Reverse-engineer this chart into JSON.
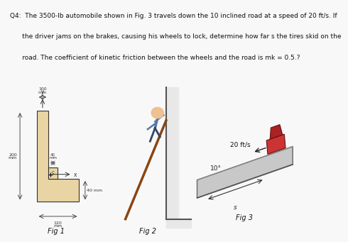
{
  "bg_color": "#f8f8f8",
  "text_color": "#111111",
  "q_text_line1": "Q4:  The 3500-lb automobile shown in Fig. 3 travels down the 10 inclined road at a speed of 20 ft/s. If",
  "q_text_line2": "      the driver jams on the brakes, causing his wheels to lock, determine how far s the tires skid on the",
  "q_text_line3": "      road. The coefficient of kinetic friction between the wheels and the road is mk = 0.5.?",
  "fig1_label": "Fig 1",
  "fig2_label": "Fig 2",
  "fig3_label": "Fig 3",
  "label_fontsize": 7,
  "q_fontsize": 6.5,
  "dim_fontsize": 4.5,
  "fig1_color": "#e8d5a3",
  "fig1_edge": "#333333",
  "road_color": "#b8b8b8",
  "car_color": "#cc3333",
  "car_roof_color": "#aa2222",
  "dim_color": "#333333",
  "speed_text": "20 ft/s",
  "angle_text": "10°",
  "dim100": "100\nmm",
  "dim40_right": "40 mm",
  "dim40_inner": "40\nmm",
  "dim200": "200\nmm",
  "dim120": "120\nmm"
}
